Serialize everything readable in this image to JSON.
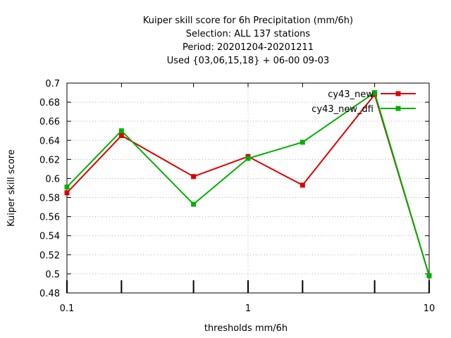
{
  "chart_data": {
    "type": "line",
    "title_lines": [
      "Kuiper skill score  for 6h Precipitation (mm/6h)",
      "Selection: ALL     137 stations",
      "Period: 20201204-20201211",
      "Used {03,06,15,18} + 06-00 09-03"
    ],
    "xlabel": "thresholds mm/6h",
    "ylabel": "Kuiper skill score",
    "x_scale": "log",
    "xlim": [
      0.1,
      10
    ],
    "ylim": [
      0.48,
      0.7
    ],
    "x_ticks": [
      0.1,
      1,
      10
    ],
    "x_tick_labels": [
      "0.1",
      "1",
      "10"
    ],
    "x_minor_ticks": [
      0.2,
      0.5,
      2,
      5
    ],
    "y_ticks": [
      0.48,
      0.5,
      0.52,
      0.54,
      0.56,
      0.58,
      0.6,
      0.62,
      0.64,
      0.66,
      0.68,
      0.7
    ],
    "y_tick_labels": [
      "0.48",
      "0.5",
      "0.52",
      "0.54",
      "0.56",
      "0.58",
      "0.6",
      "0.62",
      "0.64",
      "0.66",
      "0.68",
      "0.7"
    ],
    "grid": true,
    "legend_position": "top-right",
    "series": [
      {
        "name": "cy43_new",
        "color": "#dd0000",
        "x": [
          0.1,
          0.2,
          0.5,
          1,
          2,
          5,
          10
        ],
        "y": [
          0.585,
          0.645,
          0.602,
          0.623,
          0.593,
          0.688,
          0.498
        ]
      },
      {
        "name": "cy43_new_dfi",
        "color": "#00b000",
        "x": [
          0.1,
          0.2,
          0.5,
          1,
          2,
          5,
          10
        ],
        "y": [
          0.591,
          0.65,
          0.573,
          0.621,
          0.638,
          0.69,
          0.498
        ]
      }
    ]
  }
}
